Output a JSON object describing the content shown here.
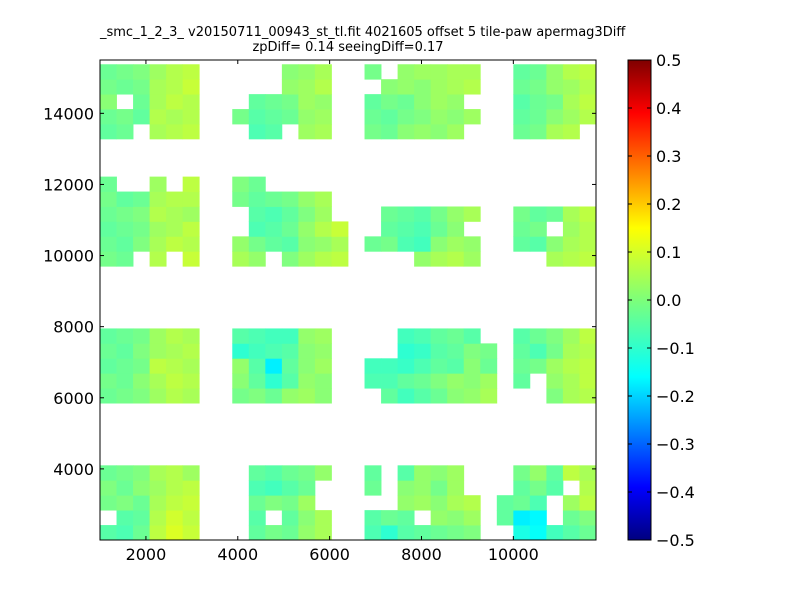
{
  "chart_data": {
    "type": "heatmap",
    "title": "_smc_1_2_3_ v20150711_00943_st_tl.fit 4021605 offset 5 tile-paw apermag3Diff",
    "subtitle": "zpDiff= 0.14 seeingDiff=0.17",
    "xlim": [
      1000,
      11800
    ],
    "ylim": [
      2000,
      15500
    ],
    "x_ticks": [
      2000,
      4000,
      6000,
      8000,
      10000
    ],
    "x_tick_labels": [
      "2000",
      "4000",
      "6000",
      "8000",
      "10000"
    ],
    "y_ticks": [
      4000,
      6000,
      8000,
      10000,
      12000,
      14000
    ],
    "y_tick_labels": [
      "4000",
      "6000",
      "8000",
      "10000",
      "12000",
      "14000"
    ],
    "color_scale": {
      "colormap": "jet",
      "vmin": -0.5,
      "vmax": 0.5
    },
    "colorbar_ticks": [
      0.5,
      0.4,
      0.3,
      0.2,
      0.1,
      0.0,
      -0.1,
      -0.2,
      -0.3,
      -0.4,
      -0.5
    ],
    "colorbar_tick_labels": [
      "0.5",
      "0.4",
      "0.3",
      "0.2",
      "0.1",
      "0.0",
      "−0.1",
      "−0.2",
      "−0.3",
      "−0.4",
      "−0.5"
    ],
    "cell_size": {
      "x": 360,
      "y": 420
    },
    "column_starts": [
      1000,
      1360,
      1720,
      2080,
      2440,
      2800,
      3160,
      3520,
      3880,
      4240,
      4600,
      4960,
      5320,
      5680,
      6040,
      6400,
      6760,
      7120,
      7480,
      7840,
      8200,
      8560,
      8920,
      9280,
      9640,
      10000,
      10360,
      10720,
      11080,
      11440
    ],
    "row_bands": [
      {
        "y_starts": [
          2000,
          2420,
          2840,
          3260,
          3680
        ],
        "rows": [
          [
            -0.04,
            -0.05,
            -0.02,
            0.06,
            0.09,
            0.07,
            null,
            null,
            null,
            -0.03,
            -0.01,
            -0.02,
            0.02,
            0.04,
            null,
            null,
            -0.05,
            -0.08,
            -0.04,
            -0.03,
            -0.02,
            -0.01,
            0.0,
            null,
            null,
            -0.1,
            -0.12,
            -0.06,
            -0.04,
            -0.02
          ],
          [
            null,
            -0.04,
            -0.03,
            0.05,
            0.08,
            0.06,
            null,
            null,
            null,
            -0.04,
            null,
            -0.03,
            0.01,
            0.04,
            null,
            null,
            -0.04,
            -0.02,
            -0.03,
            null,
            0.02,
            0.01,
            0.03,
            null,
            -0.03,
            -0.14,
            -0.13,
            null,
            -0.02,
            0.0
          ],
          [
            -0.01,
            0.0,
            -0.02,
            0.04,
            0.06,
            0.07,
            null,
            null,
            null,
            -0.02,
            0.0,
            -0.01,
            0.03,
            null,
            null,
            null,
            null,
            null,
            0.02,
            0.03,
            0.01,
            0.04,
            0.05,
            null,
            -0.03,
            -0.02,
            -0.05,
            null,
            0.03,
            0.06
          ],
          [
            0.0,
            -0.02,
            0.01,
            0.03,
            0.05,
            0.06,
            null,
            null,
            null,
            -0.05,
            -0.06,
            -0.04,
            -0.02,
            null,
            null,
            null,
            -0.02,
            null,
            0.01,
            0.02,
            -0.01,
            0.03,
            null,
            null,
            null,
            -0.03,
            -0.01,
            -0.04,
            null,
            0.05
          ],
          [
            -0.02,
            -0.01,
            0.0,
            0.04,
            0.05,
            0.03,
            null,
            null,
            null,
            -0.03,
            -0.04,
            -0.02,
            -0.01,
            0.02,
            null,
            null,
            -0.03,
            null,
            -0.04,
            0.02,
            0.01,
            0.03,
            null,
            null,
            null,
            -0.01,
            0.02,
            -0.03,
            0.06,
            0.04
          ]
        ]
      },
      {
        "y_starts": [
          5850,
          6270,
          6690,
          7110,
          7530
        ],
        "rows": [
          [
            -0.02,
            -0.01,
            0.0,
            0.03,
            0.05,
            0.04,
            null,
            null,
            -0.01,
            0.0,
            -0.02,
            0.02,
            0.03,
            0.01,
            null,
            null,
            null,
            -0.03,
            -0.06,
            -0.04,
            -0.02,
            0.01,
            0.02,
            0.04,
            null,
            null,
            null,
            0.0,
            0.04,
            0.05
          ],
          [
            -0.01,
            -0.02,
            0.01,
            0.04,
            0.06,
            0.05,
            null,
            null,
            0.01,
            -0.03,
            -0.08,
            -0.04,
            0.02,
            0.01,
            null,
            null,
            -0.05,
            -0.05,
            -0.03,
            -0.02,
            0.0,
            0.02,
            0.01,
            0.03,
            null,
            -0.03,
            null,
            0.02,
            0.04,
            0.06
          ],
          [
            -0.03,
            -0.02,
            -0.01,
            0.06,
            0.05,
            0.04,
            null,
            null,
            0.02,
            -0.04,
            -0.14,
            -0.03,
            0.01,
            0.03,
            null,
            null,
            -0.06,
            -0.06,
            -0.07,
            -0.05,
            -0.03,
            -0.04,
            0.01,
            -0.02,
            null,
            -0.02,
            -0.01,
            0.03,
            0.05,
            0.06
          ],
          [
            -0.02,
            -0.03,
            0.0,
            0.03,
            0.04,
            0.05,
            null,
            null,
            -0.08,
            -0.06,
            -0.05,
            -0.04,
            0.01,
            0.02,
            null,
            null,
            null,
            null,
            -0.08,
            -0.07,
            -0.04,
            -0.03,
            0.0,
            -0.01,
            null,
            -0.03,
            -0.05,
            -0.01,
            0.04,
            0.05
          ],
          [
            -0.03,
            -0.02,
            -0.01,
            0.03,
            0.05,
            0.04,
            null,
            null,
            -0.04,
            -0.05,
            -0.06,
            -0.06,
            0.02,
            0.03,
            null,
            null,
            null,
            null,
            -0.06,
            -0.05,
            -0.03,
            -0.02,
            -0.04,
            null,
            null,
            -0.04,
            -0.02,
            0.0,
            0.03,
            0.06
          ]
        ]
      },
      {
        "y_starts": [
          9700,
          10120,
          10540,
          10960,
          11380,
          11800
        ],
        "rows": [
          [
            -0.01,
            -0.02,
            null,
            0.05,
            null,
            0.07,
            null,
            null,
            0.04,
            0.02,
            null,
            0.0,
            0.03,
            0.05,
            0.06,
            null,
            null,
            null,
            null,
            0.02,
            0.04,
            0.05,
            0.03,
            null,
            null,
            null,
            null,
            0.04,
            0.05,
            0.06
          ],
          [
            -0.02,
            -0.03,
            0.0,
            0.04,
            0.06,
            0.05,
            null,
            null,
            0.02,
            -0.01,
            -0.03,
            -0.04,
            0.01,
            0.02,
            0.04,
            null,
            -0.02,
            -0.01,
            -0.05,
            -0.06,
            0.01,
            0.03,
            0.02,
            null,
            null,
            -0.03,
            -0.04,
            0.01,
            0.04,
            0.05
          ],
          [
            -0.03,
            -0.02,
            -0.01,
            0.03,
            0.04,
            0.06,
            null,
            null,
            null,
            -0.05,
            -0.04,
            -0.02,
            0.02,
            0.05,
            0.07,
            null,
            null,
            -0.03,
            -0.04,
            -0.05,
            -0.02,
            0.01,
            null,
            null,
            null,
            -0.02,
            -0.01,
            null,
            0.03,
            0.05
          ],
          [
            -0.02,
            -0.01,
            0.0,
            0.05,
            0.04,
            0.03,
            null,
            null,
            null,
            -0.04,
            -0.05,
            -0.03,
            0.0,
            0.03,
            null,
            null,
            null,
            -0.02,
            -0.03,
            -0.04,
            -0.01,
            0.02,
            0.04,
            null,
            null,
            -0.01,
            -0.03,
            -0.02,
            0.04,
            0.06
          ],
          [
            -0.01,
            -0.03,
            -0.02,
            0.04,
            0.05,
            0.05,
            null,
            null,
            -0.01,
            -0.03,
            -0.02,
            -0.01,
            0.02,
            0.04,
            null,
            null,
            null,
            null,
            null,
            null,
            null,
            null,
            null,
            null,
            null,
            null,
            null,
            null,
            null,
            null
          ],
          [
            -0.02,
            null,
            null,
            0.03,
            null,
            0.06,
            null,
            null,
            0.0,
            -0.02,
            null,
            null,
            null,
            null,
            null,
            null,
            null,
            null,
            null,
            null,
            null,
            null,
            null,
            null,
            null,
            null,
            null,
            null,
            null,
            null
          ]
        ]
      },
      {
        "y_starts": [
          13280,
          13700,
          14120,
          14540,
          14960
        ],
        "rows": [
          [
            -0.03,
            -0.02,
            null,
            0.04,
            0.05,
            0.06,
            null,
            null,
            null,
            -0.05,
            -0.04,
            null,
            0.03,
            0.04,
            null,
            null,
            -0.01,
            -0.02,
            0.01,
            0.02,
            0.01,
            0.03,
            null,
            null,
            null,
            -0.02,
            -0.01,
            0.04,
            0.05,
            null
          ],
          [
            -0.02,
            -0.01,
            -0.03,
            0.05,
            0.04,
            0.05,
            null,
            null,
            -0.01,
            -0.04,
            -0.03,
            -0.02,
            0.02,
            0.03,
            null,
            null,
            -0.02,
            -0.03,
            -0.01,
            0.0,
            0.02,
            0.01,
            0.03,
            null,
            null,
            -0.03,
            -0.02,
            0.01,
            0.03,
            0.05
          ],
          [
            0.01,
            null,
            -0.02,
            0.04,
            0.06,
            0.05,
            null,
            null,
            null,
            -0.03,
            -0.02,
            -0.01,
            0.03,
            0.02,
            null,
            null,
            -0.03,
            -0.01,
            -0.02,
            0.01,
            0.03,
            0.02,
            null,
            null,
            null,
            -0.04,
            -0.02,
            -0.01,
            0.04,
            0.06
          ],
          [
            -0.01,
            -0.02,
            -0.01,
            0.04,
            0.05,
            0.07,
            null,
            null,
            null,
            null,
            null,
            0.02,
            0.03,
            0.05,
            null,
            null,
            null,
            0.01,
            0.02,
            0.01,
            0.03,
            0.04,
            0.05,
            null,
            null,
            -0.02,
            -0.01,
            0.02,
            0.03,
            0.05
          ],
          [
            -0.02,
            -0.01,
            0.0,
            0.03,
            0.05,
            0.06,
            null,
            null,
            null,
            null,
            null,
            0.01,
            0.02,
            0.04,
            null,
            null,
            -0.01,
            null,
            0.02,
            0.03,
            0.03,
            0.04,
            0.04,
            null,
            null,
            -0.03,
            -0.02,
            0.02,
            0.05,
            0.06
          ]
        ]
      }
    ],
    "grid": false,
    "legend": "colorbar-right"
  }
}
